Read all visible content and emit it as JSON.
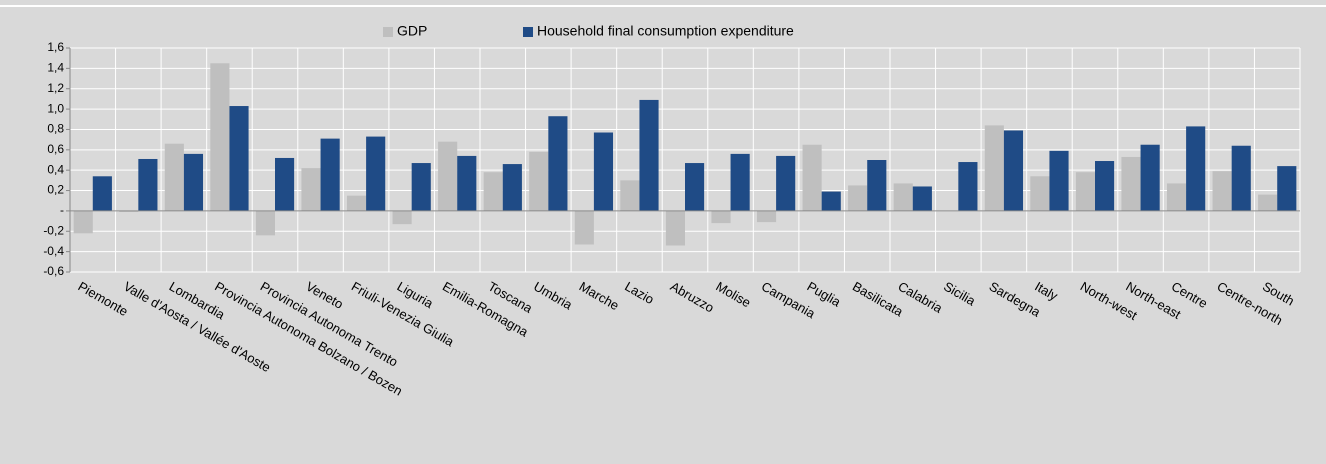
{
  "chart_data": {
    "type": "bar",
    "categories": [
      "Piemonte",
      "Valle d'Aosta / Vallée d'Aoste",
      "Lombardia",
      "Provincia Autonoma Bolzano / Bozen",
      "Provincia Autonoma Trento",
      "Veneto",
      "Friuli-Venezia Giulia",
      "Liguria",
      "Emilia-Romagna",
      "Toscana",
      "Umbria",
      "Marche",
      "Lazio",
      "Abruzzo",
      "Molise",
      "Campania",
      "Puglia",
      "Basilicata",
      "Calabria",
      "Sicilia",
      "Sardegna",
      "Italy",
      "North-west",
      "North-east",
      "Centre",
      "Centre-north",
      "South"
    ],
    "series": [
      {
        "name": "GDP",
        "color": "#bfbfbf",
        "values": [
          -0.22,
          -0.01,
          0.66,
          1.45,
          -0.24,
          0.42,
          0.15,
          -0.13,
          0.68,
          0.38,
          0.58,
          -0.33,
          0.3,
          -0.34,
          -0.12,
          -0.11,
          0.65,
          0.25,
          0.27,
          0.0,
          0.84,
          0.34,
          0.38,
          0.53,
          0.27,
          0.39,
          0.16
        ]
      },
      {
        "name": "Household final consumption expenditure",
        "color": "#1f4b86",
        "values": [
          0.34,
          0.51,
          0.56,
          1.03,
          0.52,
          0.71,
          0.73,
          0.47,
          0.54,
          0.46,
          0.93,
          0.77,
          1.09,
          0.47,
          0.56,
          0.54,
          0.19,
          0.5,
          0.24,
          0.48,
          0.79,
          0.59,
          0.49,
          0.65,
          0.83,
          0.64,
          0.44
        ]
      }
    ],
    "ylim": [
      -0.6,
      1.6
    ],
    "yticks": [
      {
        "value": 1.6,
        "label": "1,6"
      },
      {
        "value": 1.4,
        "label": "1,4"
      },
      {
        "value": 1.2,
        "label": "1,2"
      },
      {
        "value": 1.0,
        "label": "1,0"
      },
      {
        "value": 0.8,
        "label": "0,8"
      },
      {
        "value": 0.6,
        "label": "0,6"
      },
      {
        "value": 0.4,
        "label": "0,4"
      },
      {
        "value": 0.2,
        "label": "0,2"
      },
      {
        "value": 0,
        "label": "-"
      },
      {
        "value": -0.2,
        "label": "-0,2"
      },
      {
        "value": -0.4,
        "label": "-0,4"
      },
      {
        "value": -0.6,
        "label": "-0,6"
      }
    ],
    "grid": true,
    "legend": "top"
  }
}
